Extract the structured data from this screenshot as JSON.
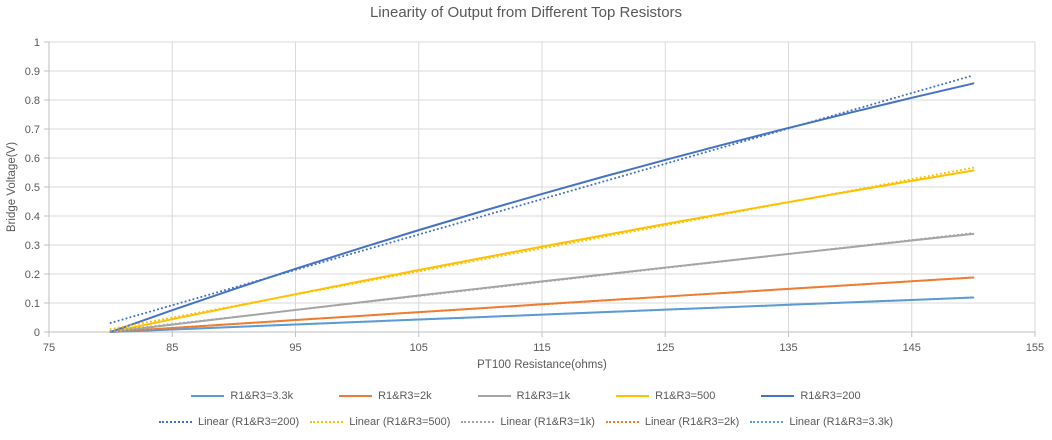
{
  "chart_data": {
    "type": "line",
    "title": "Linearity of Output from Different Top Resistors",
    "xlabel": "PT100 Resistance(ohms)",
    "ylabel": "Bridge Voltage(V)",
    "xlim": [
      75,
      155
    ],
    "ylim": [
      0,
      1
    ],
    "x_ticks": [
      "75",
      "85",
      "95",
      "105",
      "115",
      "125",
      "135",
      "145",
      "155"
    ],
    "y_ticks": [
      "0",
      "0.1",
      "0.2",
      "0.3",
      "0.4",
      "0.5",
      "0.6",
      "0.7",
      "0.8",
      "0.9",
      "1"
    ],
    "grid": true,
    "legend_position": "bottom",
    "x": [
      80,
      85,
      90,
      95,
      100,
      105,
      110,
      115,
      120,
      125,
      130,
      135,
      140,
      145,
      150
    ],
    "series": [
      {
        "name": "R1&R3=3.3k",
        "color": "#5B9BD5",
        "values": [
          0,
          0.0087,
          0.0173,
          0.0259,
          0.0345,
          0.043,
          0.0515,
          0.06,
          0.0685,
          0.077,
          0.0854,
          0.0938,
          0.1022,
          0.1105,
          0.1189
        ]
      },
      {
        "name": "R1&R3=2k",
        "color": "#ED7D31",
        "values": [
          0,
          0.0138,
          0.0276,
          0.0413,
          0.0549,
          0.0685,
          0.082,
          0.0955,
          0.1089,
          0.1222,
          0.1354,
          0.1486,
          0.1618,
          0.1748,
          0.1878
        ]
      },
      {
        "name": "R1&R3=1k",
        "color": "#A5A5A5",
        "values": [
          0,
          0.0256,
          0.051,
          0.0761,
          0.101,
          0.1257,
          0.1502,
          0.1744,
          0.1984,
          0.2222,
          0.2458,
          0.2692,
          0.2924,
          0.3154,
          0.3382
        ]
      },
      {
        "name": "R1&R3=500",
        "color": "#FFC000",
        "values": [
          0,
          0.0442,
          0.0877,
          0.1304,
          0.1724,
          0.2137,
          0.2544,
          0.2944,
          0.3337,
          0.3724,
          0.4105,
          0.448,
          0.4849,
          0.5212,
          0.557
        ]
      },
      {
        "name": "R1&R3=200",
        "color": "#4472C4",
        "values": [
          0,
          0.0752,
          0.1478,
          0.2179,
          0.2857,
          0.3513,
          0.4147,
          0.4762,
          0.5357,
          0.5934,
          0.6494,
          0.7036,
          0.7563,
          0.8075,
          0.8571
        ]
      }
    ],
    "trend_x_range": [
      80,
      150
    ],
    "trendlines": [
      {
        "name": "Linear (R1&R3=200)",
        "color": "#4472C4",
        "slope": 0.0121965,
        "intercept": -0.944477
      },
      {
        "name": "Linear (R1&R3=500)",
        "color": "#FFC000",
        "slope": 0.0079493,
        "intercept": -0.625837
      },
      {
        "name": "Linear (R1&R3=1k)",
        "color": "#A5A5A5",
        "slope": 0.0048294,
        "intercept": -0.383014
      },
      {
        "name": "Linear (R1&R3=2k)",
        "color": "#ED7D31",
        "slope": 0.0026831,
        "intercept": -0.21368
      },
      {
        "name": "Linear (R1&R3=3.3k)",
        "color": "#5B9BD5",
        "slope": 0.0016979,
        "intercept": -0.135455
      }
    ]
  },
  "style": {
    "text_color": "#595959",
    "gridline_color": "#D9D9D9",
    "axis_line_color": "#BFBFBF",
    "background": "#FFFFFF"
  }
}
